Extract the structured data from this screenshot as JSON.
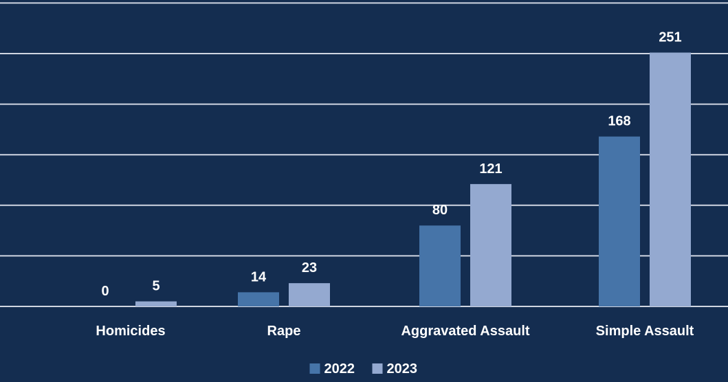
{
  "chart_data": {
    "type": "bar",
    "title": "",
    "xlabel": "",
    "ylabel": "",
    "categories": [
      "Homicides",
      "Rape",
      "Aggravated Assault",
      "Simple Assault"
    ],
    "series": [
      {
        "name": "2022",
        "values": [
          0,
          14,
          80,
          168
        ],
        "color": "#4674a8"
      },
      {
        "name": "2023",
        "values": [
          5,
          23,
          121,
          251
        ],
        "color": "#94a9d0"
      }
    ],
    "ylim": [
      0,
      300
    ],
    "y_gridline_step": 50,
    "grid": true,
    "legend": "bottom-center",
    "background_color": "#142d50",
    "gridline_color": "#d0d6e2"
  }
}
